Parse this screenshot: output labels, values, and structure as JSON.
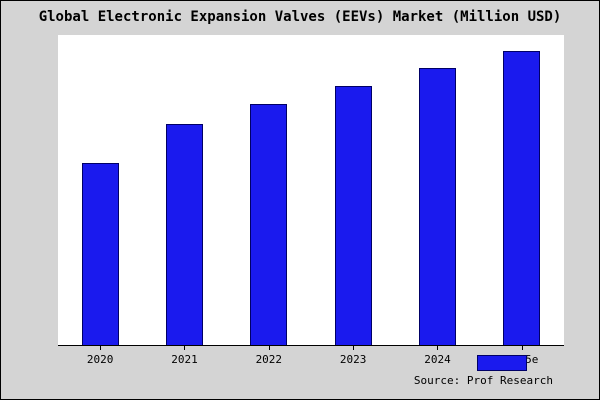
{
  "chart_data": {
    "type": "bar",
    "title": "Global Electronic Expansion Valves (EEVs) Market (Million USD)",
    "categories": [
      "2020",
      "2021",
      "2022",
      "2023",
      "2024",
      "2025e"
    ],
    "values": [
      62,
      75,
      82,
      88,
      94,
      100
    ],
    "xlabel": "",
    "ylabel": "",
    "ylim": [
      0,
      105
    ],
    "grid": false,
    "legend": false,
    "bar_color": "#1a1aee",
    "bar_border_color": "#000066",
    "plot_background": "#ffffff",
    "background": "#d4d4d4"
  },
  "source": {
    "text": "Source: Prof Research"
  }
}
